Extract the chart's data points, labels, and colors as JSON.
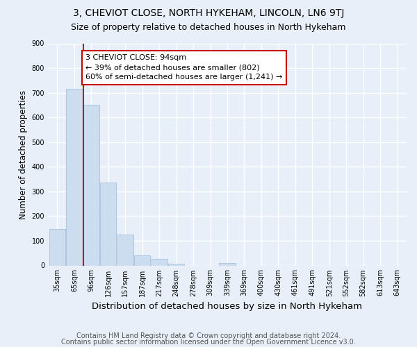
{
  "title": "3, CHEVIOT CLOSE, NORTH HYKEHAM, LINCOLN, LN6 9TJ",
  "subtitle": "Size of property relative to detached houses in North Hykeham",
  "xlabel": "Distribution of detached houses by size in North Hykeham",
  "ylabel": "Number of detached properties",
  "footer_line1": "Contains HM Land Registry data © Crown copyright and database right 2024.",
  "footer_line2": "Contains public sector information licensed under the Open Government Licence v3.0.",
  "categories": [
    "35sqm",
    "65sqm",
    "96sqm",
    "126sqm",
    "157sqm",
    "187sqm",
    "217sqm",
    "248sqm",
    "278sqm",
    "309sqm",
    "339sqm",
    "369sqm",
    "400sqm",
    "430sqm",
    "461sqm",
    "491sqm",
    "521sqm",
    "552sqm",
    "582sqm",
    "613sqm",
    "643sqm"
  ],
  "values": [
    148,
    716,
    651,
    336,
    126,
    42,
    28,
    8,
    0,
    0,
    10,
    0,
    0,
    0,
    0,
    0,
    0,
    0,
    0,
    0,
    0
  ],
  "bar_color": "#ccddf0",
  "bar_edgecolor": "#9bbbd8",
  "highlight_line_color": "#cc0000",
  "highlight_line_index": 2,
  "annotation_box_text": "3 CHEVIOT CLOSE: 94sqm\n← 39% of detached houses are smaller (802)\n60% of semi-detached houses are larger (1,241) →",
  "annotation_box_color": "#cc0000",
  "annotation_box_facecolor": "white",
  "ylim": [
    0,
    900
  ],
  "yticks": [
    0,
    100,
    200,
    300,
    400,
    500,
    600,
    700,
    800,
    900
  ],
  "background_color": "#e8eff8",
  "grid_color": "white",
  "title_fontsize": 10,
  "subtitle_fontsize": 9,
  "xlabel_fontsize": 9.5,
  "ylabel_fontsize": 8.5,
  "tick_fontsize": 7,
  "annotation_fontsize": 8,
  "footer_fontsize": 7
}
